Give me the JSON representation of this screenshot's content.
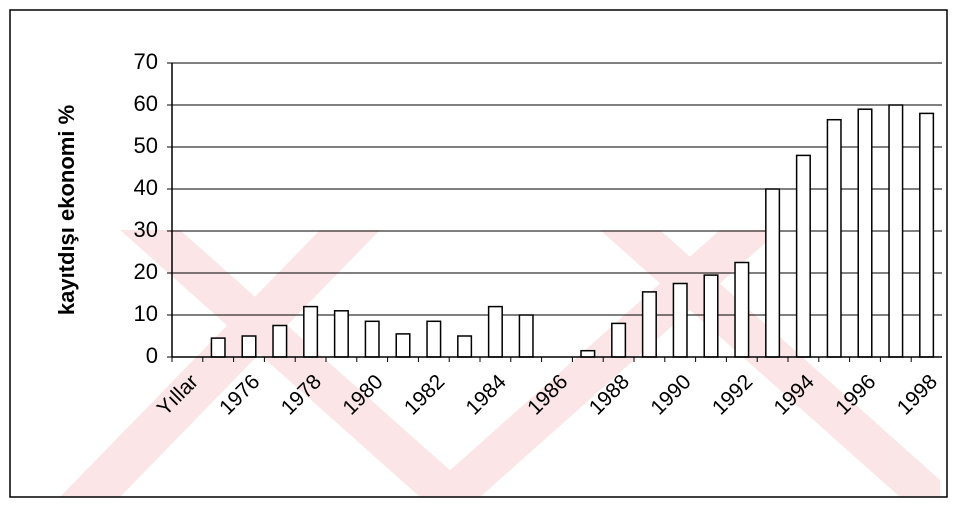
{
  "chart_data": {
    "type": "bar",
    "y_label": "kayıtdışı ekonomi %",
    "categories": [
      "Yıllar",
      null,
      "1976",
      null,
      "1978",
      null,
      "1980",
      null,
      "1982",
      null,
      "1984",
      null,
      "1986",
      null,
      "1988",
      null,
      "1990",
      null,
      "1992",
      null,
      "1994",
      null,
      "1996",
      null,
      "1998"
    ],
    "values": [
      null,
      4.5,
      5,
      7.5,
      12,
      11,
      8.5,
      5.5,
      8.5,
      5,
      12,
      10,
      null,
      1.5,
      8,
      15.5,
      17.5,
      19.5,
      22.5,
      40,
      48,
      56.5,
      59,
      60,
      58
    ],
    "color": "#ffffff",
    "ylim": [
      0,
      70
    ],
    "yticks": [
      0,
      10,
      20,
      30,
      40,
      50,
      60,
      70
    ],
    "grid": true
  }
}
